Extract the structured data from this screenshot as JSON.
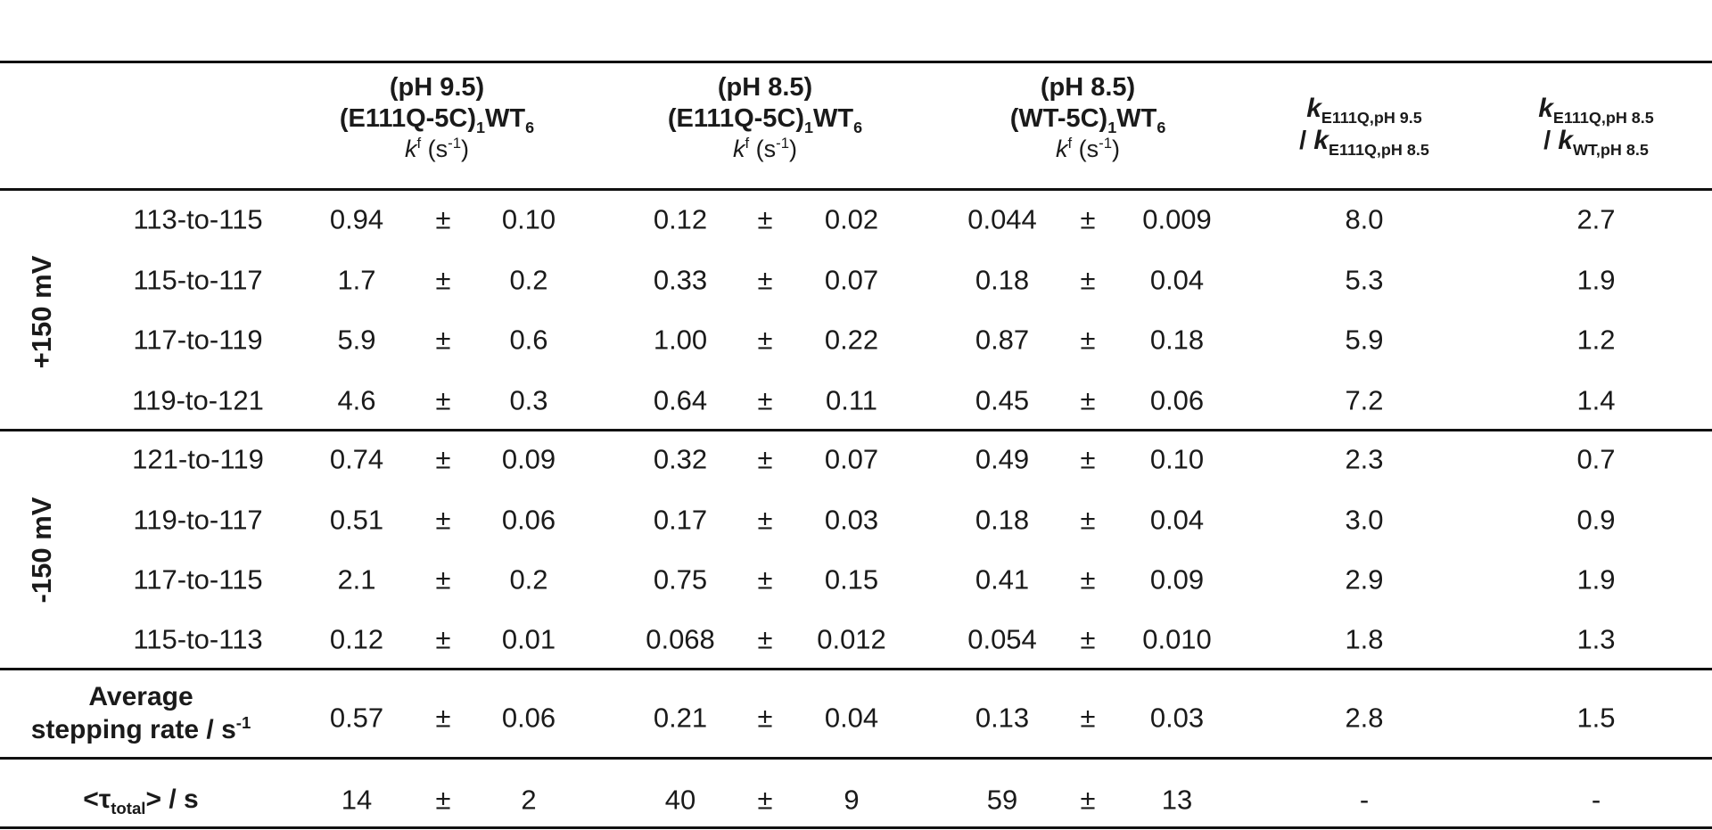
{
  "headers": {
    "col1": {
      "ph": "(pH 9.5)",
      "construct": "(E111Q-5C)",
      "construct_sub1": "1",
      "construct_tail": "WT",
      "construct_sub2": "6",
      "kf": "k",
      "kf_sup": "f",
      "unit": " (s",
      "unit_sup": "-1",
      "unit_close": ")"
    },
    "col2": {
      "ph": "(pH 8.5)",
      "construct": "(E111Q-5C)",
      "construct_sub1": "1",
      "construct_tail": "WT",
      "construct_sub2": "6",
      "kf": "k",
      "kf_sup": "f",
      "unit": " (s",
      "unit_sup": "-1",
      "unit_close": ")"
    },
    "col3": {
      "ph": "(pH 8.5)",
      "construct": "(WT-5C)",
      "construct_sub1": "1",
      "construct_tail": "WT",
      "construct_sub2": "6",
      "kf": "k",
      "kf_sup": "f",
      "unit": " (s",
      "unit_sup": "-1",
      "unit_close": ")"
    },
    "col4": {
      "k1": "k",
      "k1_sub": "E111Q,pH 9.5",
      "sep": "/ ",
      "k2": "k",
      "k2_sub": "E111Q,pH 8.5"
    },
    "col5": {
      "k1": "k",
      "k1_sub": "E111Q,pH 8.5",
      "sep": "/ ",
      "k2": "k",
      "k2_sub": "WT,pH 8.5"
    }
  },
  "groups": {
    "plus": "+150 mV",
    "minus": "-150 mV"
  },
  "pm": "±",
  "rows": [
    {
      "step": "113-to-115",
      "c1": "0.94",
      "c1e": "0.10",
      "c2": "0.12",
      "c2e": "0.02",
      "c3": "0.044",
      "c3e": "0.009",
      "r1": "8.0",
      "r2": "2.7"
    },
    {
      "step": "115-to-117",
      "c1": "1.7",
      "c1e": "0.2",
      "c2": "0.33",
      "c2e": "0.07",
      "c3": "0.18",
      "c3e": "0.04",
      "r1": "5.3",
      "r2": "1.9"
    },
    {
      "step": "117-to-119",
      "c1": "5.9",
      "c1e": "0.6",
      "c2": "1.00",
      "c2e": "0.22",
      "c3": "0.87",
      "c3e": "0.18",
      "r1": "5.9",
      "r2": "1.2"
    },
    {
      "step": "119-to-121",
      "c1": "4.6",
      "c1e": "0.3",
      "c2": "0.64",
      "c2e": "0.11",
      "c3": "0.45",
      "c3e": "0.06",
      "r1": "7.2",
      "r2": "1.4"
    },
    {
      "step": "121-to-119",
      "c1": "0.74",
      "c1e": "0.09",
      "c2": "0.32",
      "c2e": "0.07",
      "c3": "0.49",
      "c3e": "0.10",
      "r1": "2.3",
      "r2": "0.7"
    },
    {
      "step": "119-to-117",
      "c1": "0.51",
      "c1e": "0.06",
      "c2": "0.17",
      "c2e": "0.03",
      "c3": "0.18",
      "c3e": "0.04",
      "r1": "3.0",
      "r2": "0.9"
    },
    {
      "step": "117-to-115",
      "c1": "2.1",
      "c1e": "0.2",
      "c2": "0.75",
      "c2e": "0.15",
      "c3": "0.41",
      "c3e": "0.09",
      "r1": "2.9",
      "r2": "1.9"
    },
    {
      "step": "115-to-113",
      "c1": "0.12",
      "c1e": "0.01",
      "c2": "0.068",
      "c2e": "0.012",
      "c3": "0.054",
      "c3e": "0.010",
      "r1": "1.8",
      "r2": "1.3"
    }
  ],
  "average": {
    "label1": "Average",
    "label2": "stepping rate / s",
    "label2_sup": "-1",
    "c1": "0.57",
    "c1e": "0.06",
    "c2": "0.21",
    "c2e": "0.04",
    "c3": "0.13",
    "c3e": "0.03",
    "r1": "2.8",
    "r2": "1.5"
  },
  "total": {
    "label_open": "<τ",
    "label_sub": "total",
    "label_close": "> / s",
    "c1": "14",
    "c1e": "2",
    "c2": "40",
    "c2e": "9",
    "c3": "59",
    "c3e": "13",
    "r1": "-",
    "r2": "-"
  }
}
